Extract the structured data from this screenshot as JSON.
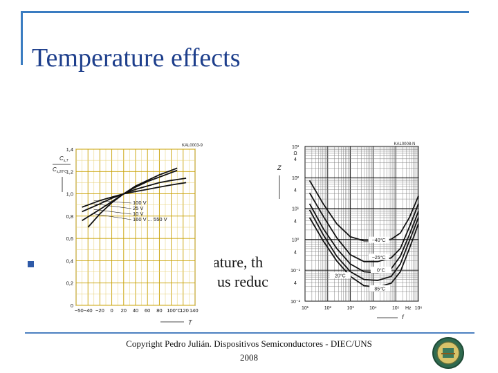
{
  "slide": {
    "title": "Temperature effects",
    "body_lines": [
      "ature, th",
      "us reduc"
    ],
    "footer_line1": "Copyright Pedro Julián. Dispositivos Semiconductores - DIEC/UNS",
    "footer_line2": "2008"
  },
  "chart_data": [
    {
      "type": "line",
      "code": "KAL0003-9",
      "ylabel_top": "C",
      "ylabel_top_sub": "s,T",
      "ylabel_bottom": "C",
      "ylabel_bottom_sub": "s,20°C",
      "xlabel": "T",
      "x_ticks": [
        "−50",
        "−40",
        "−20",
        "0",
        "20",
        "40",
        "60",
        "80",
        "100",
        "°C",
        "120",
        "140"
      ],
      "y_ticks": [
        "0",
        "0,2",
        "0,4",
        "0,6",
        "0,8",
        "1,0",
        "1,2",
        "1,4"
      ],
      "xlim": [
        -60,
        140
      ],
      "ylim": [
        0,
        1.4
      ],
      "series": [
        {
          "name": "100 V",
          "x": [
            -50,
            -20,
            0,
            20,
            40,
            60,
            80,
            100,
            125
          ],
          "y": [
            0.88,
            0.94,
            0.97,
            1.0,
            1.02,
            1.04,
            1.06,
            1.08,
            1.1
          ]
        },
        {
          "name": "25 V",
          "x": [
            -50,
            -20,
            0,
            20,
            40,
            60,
            80,
            100,
            125
          ],
          "y": [
            0.84,
            0.91,
            0.96,
            1.0,
            1.04,
            1.07,
            1.1,
            1.12,
            1.14
          ]
        },
        {
          "name": "10 V",
          "x": [
            -50,
            -20,
            0,
            20,
            40,
            60,
            80,
            100,
            110
          ],
          "y": [
            0.76,
            0.86,
            0.93,
            1.0,
            1.06,
            1.11,
            1.15,
            1.19,
            1.21
          ]
        },
        {
          "name": "160 V ... 550 V",
          "x": [
            -40,
            -20,
            0,
            20,
            40,
            60,
            80,
            100,
            110
          ],
          "y": [
            0.7,
            0.82,
            0.92,
            1.0,
            1.07,
            1.12,
            1.17,
            1.21,
            1.23
          ]
        }
      ]
    },
    {
      "type": "line",
      "code": "KAL0008-N",
      "ylabel": "Z",
      "yunit": "Ω",
      "xlabel": "f",
      "xunit": "Hz",
      "x_log": true,
      "y_log": true,
      "x_ticks": [
        "10¹",
        "10²",
        "10³",
        "10⁴",
        "10⁵",
        "Hz",
        "10⁶"
      ],
      "y_ticks": [
        "10³",
        "Ω",
        "4",
        "10²",
        "4",
        "10¹",
        "4",
        "10⁰",
        "4",
        "10⁻¹",
        "4",
        "10⁻²"
      ],
      "xlim": [
        1,
        6
      ],
      "ylim": [
        -2,
        3
      ],
      "series": [
        {
          "name": "−40°C",
          "x": [
            1.2,
            1.8,
            2.4,
            3.0,
            3.6,
            4.2,
            4.8,
            5.2,
            5.6,
            6.0
          ],
          "y": [
            1.9,
            1.15,
            0.5,
            0.08,
            -0.05,
            -0.05,
            0.0,
            0.2,
            0.7,
            1.4
          ]
        },
        {
          "name": "−25°C",
          "x": [
            1.2,
            1.8,
            2.4,
            3.0,
            3.6,
            4.2,
            4.8,
            5.2,
            5.6,
            6.0
          ],
          "y": [
            1.5,
            0.75,
            0.05,
            -0.5,
            -0.72,
            -0.72,
            -0.6,
            -0.3,
            0.4,
            1.15
          ]
        },
        {
          "name": "0°C",
          "x": [
            1.2,
            1.8,
            2.4,
            3.0,
            3.6,
            4.2,
            4.8,
            5.2,
            5.6,
            6.0
          ],
          "y": [
            1.15,
            0.35,
            -0.3,
            -0.8,
            -1.05,
            -1.08,
            -0.95,
            -0.55,
            0.15,
            0.9
          ]
        },
        {
          "name": "20°C",
          "x": [
            1.2,
            1.8,
            2.4,
            3.0,
            3.6,
            4.2,
            4.8,
            5.2,
            5.6,
            6.0
          ],
          "y": [
            0.95,
            0.15,
            -0.55,
            -1.05,
            -1.3,
            -1.33,
            -1.2,
            -0.8,
            -0.05,
            0.7
          ]
        },
        {
          "name": "85°C",
          "x": [
            1.2,
            1.8,
            2.4,
            3.0,
            3.6,
            4.2,
            4.8,
            5.2,
            5.6,
            6.0
          ],
          "y": [
            0.7,
            -0.05,
            -0.7,
            -1.2,
            -1.5,
            -1.55,
            -1.42,
            -1.05,
            -0.3,
            0.5
          ]
        }
      ]
    }
  ]
}
